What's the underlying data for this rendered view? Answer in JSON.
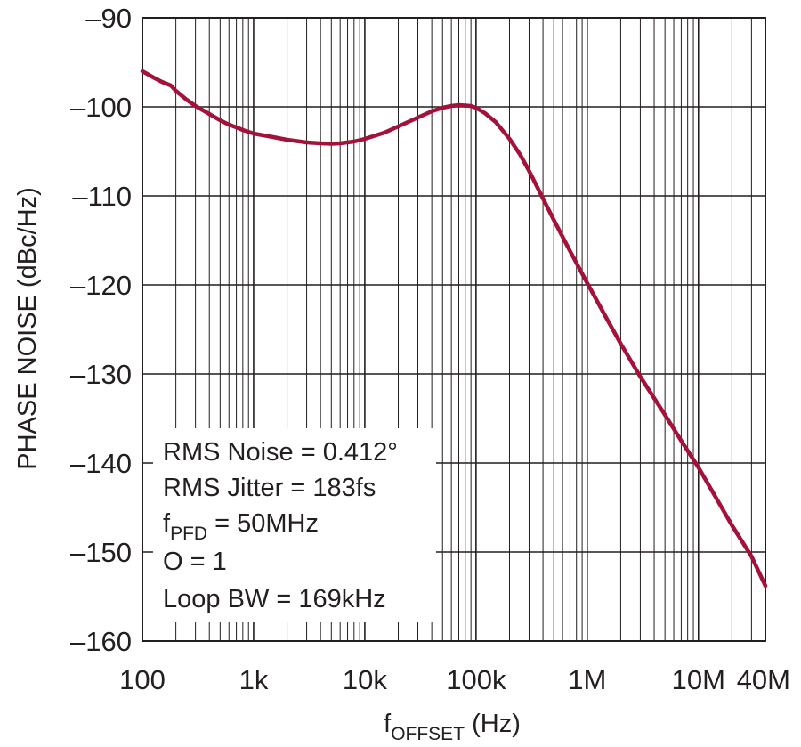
{
  "chart_data": {
    "type": "line",
    "xscale": "log",
    "xlim": [
      100,
      40000000
    ],
    "ylim": [
      -160,
      -90
    ],
    "grid": true,
    "xlabel": {
      "main": "f",
      "sub": "OFFSET",
      "unit": " (Hz)"
    },
    "ylabel": "PHASE NOISE (dBc/Hz)",
    "x_ticks": [
      100,
      1000,
      10000,
      100000,
      1000000,
      10000000,
      40000000
    ],
    "x_tick_labels": [
      "100",
      "1k",
      "10k",
      "100k",
      "1M",
      "10M",
      "40M"
    ],
    "y_ticks": [
      -90,
      -100,
      -110,
      -120,
      -130,
      -140,
      -150,
      -160
    ],
    "y_tick_labels": [
      "–90",
      "–100",
      "–110",
      "–120",
      "–130",
      "–140",
      "–150",
      "–160"
    ],
    "series": [
      {
        "color": "#a3123b",
        "x": [
          100,
          130,
          150,
          180,
          200,
          250,
          300,
          400,
          500,
          600,
          700,
          800,
          1000,
          1500,
          2000,
          3000,
          4000,
          5000,
          6000,
          8000,
          10000,
          15000,
          20000,
          30000,
          40000,
          50000,
          60000,
          70000,
          80000,
          90000,
          100000,
          120000,
          150000,
          200000,
          250000,
          300000,
          400000,
          500000,
          700000,
          1000000,
          1500000,
          2000000,
          3000000,
          5000000,
          7000000,
          10000000,
          15000000,
          20000000,
          30000000,
          40000000
        ],
        "y": [
          -96,
          -96.8,
          -97.2,
          -97.6,
          -98.2,
          -99.2,
          -99.9,
          -100.8,
          -101.5,
          -102,
          -102.3,
          -102.6,
          -103,
          -103.4,
          -103.7,
          -104,
          -104.1,
          -104.15,
          -104.1,
          -103.9,
          -103.6,
          -102.9,
          -102.2,
          -101.2,
          -100.5,
          -100.1,
          -99.9,
          -99.8,
          -99.85,
          -99.9,
          -100.1,
          -100.7,
          -101.7,
          -103.6,
          -105.4,
          -107.2,
          -110.3,
          -112.7,
          -116.2,
          -119.8,
          -123.8,
          -126.6,
          -130.3,
          -134.6,
          -137.5,
          -140.5,
          -144.3,
          -147,
          -150.5,
          -153.8
        ]
      }
    ],
    "annotations": [
      {
        "main": "RMS Noise = 0.412°"
      },
      {
        "main": "RMS Jitter = 183fs"
      },
      {
        "main": "f",
        "sub": "PFD",
        "rest": " = 50MHz"
      },
      {
        "main": "O = 1"
      },
      {
        "main": "Loop BW = 169kHz"
      }
    ]
  }
}
